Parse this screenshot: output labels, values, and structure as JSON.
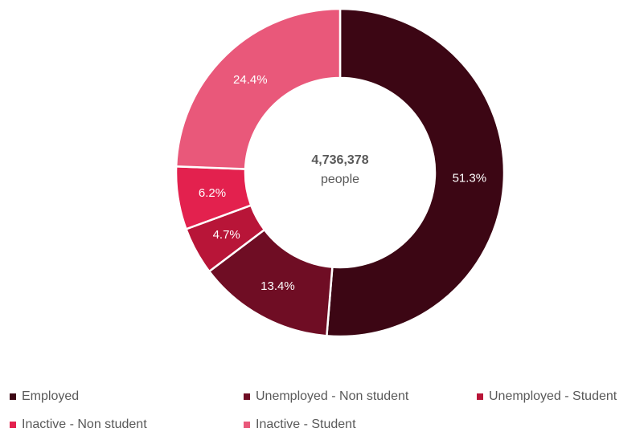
{
  "chart_data": {
    "type": "pie",
    "variant": "donut",
    "center": {
      "total": "4,736,378",
      "unit": "people"
    },
    "categories": [
      "Employed",
      "Unemployed - Non student",
      "Unemployed - Student",
      "Inactive - Non student",
      "Inactive - Student"
    ],
    "values": [
      51.3,
      13.4,
      4.7,
      6.2,
      24.4
    ],
    "labels": [
      "51.3%",
      "13.4%",
      "4.7%",
      "6.2%",
      "24.4%"
    ],
    "colors": [
      "#3c0614",
      "#6f0d24",
      "#b81538",
      "#e3214e",
      "#e9587a"
    ],
    "legend_position": "bottom"
  }
}
